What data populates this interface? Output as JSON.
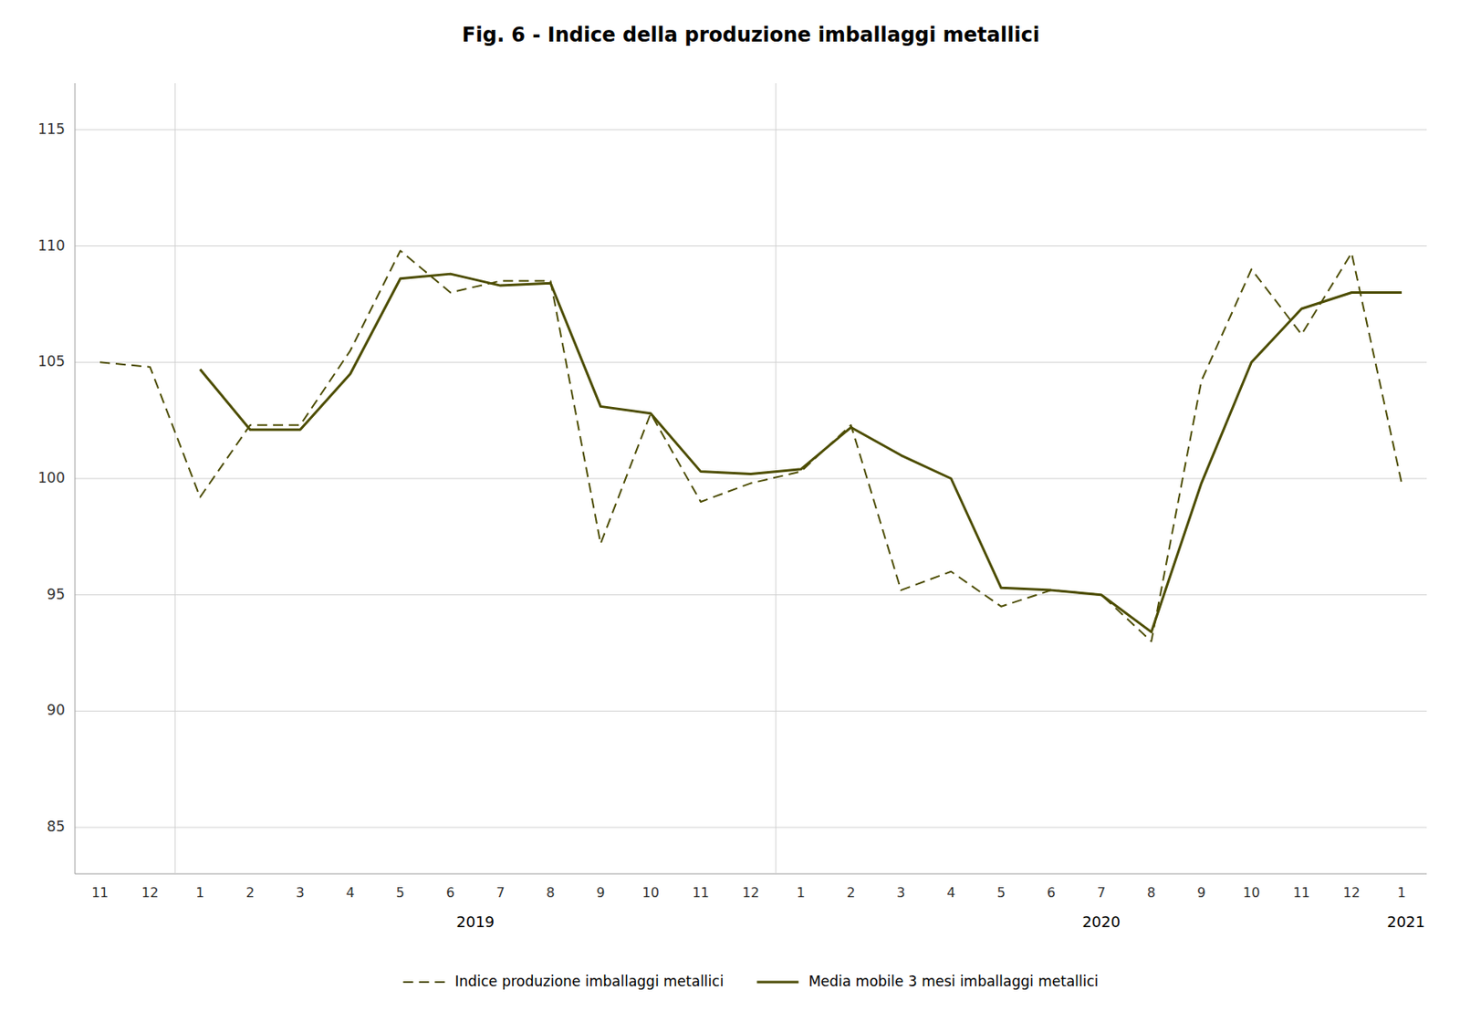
{
  "chart_data": {
    "type": "line",
    "title": "Fig. 6 - Indice della produzione imballaggi metallici",
    "categories": [
      "11",
      "12",
      "1",
      "2",
      "3",
      "4",
      "5",
      "6",
      "7",
      "8",
      "9",
      "10",
      "11",
      "12",
      "1",
      "2",
      "3",
      "4",
      "5",
      "6",
      "7",
      "8",
      "9",
      "10",
      "11",
      "12",
      "1"
    ],
    "series": [
      {
        "name": "Indice produzione imballaggi metallici",
        "color": "#4d4d00",
        "line_style": "dashed",
        "values": [
          105.0,
          104.8,
          99.2,
          102.3,
          102.3,
          105.5,
          109.8,
          108.0,
          108.5,
          108.5,
          97.2,
          102.8,
          99.0,
          99.8,
          100.3,
          102.3,
          95.2,
          96.0,
          94.5,
          95.2,
          95.0,
          93.0,
          104.2,
          109.0,
          106.2,
          109.7,
          99.8
        ]
      },
      {
        "name": "Media mobile 3 mesi imballaggi metallici",
        "color": "#4d4d00",
        "line_style": "solid",
        "values": [
          null,
          null,
          104.7,
          102.1,
          102.1,
          104.5,
          108.6,
          108.8,
          108.3,
          108.4,
          103.1,
          102.8,
          100.3,
          100.2,
          100.4,
          102.2,
          101.0,
          100.0,
          95.3,
          95.2,
          95.0,
          93.4,
          99.8,
          105.0,
          107.3,
          108.0,
          108.0
        ]
      }
    ],
    "ylim": [
      83,
      117
    ],
    "yticks": [
      85,
      90,
      95,
      100,
      105,
      110,
      115
    ],
    "grid": true,
    "legend": "bottom",
    "annotations": [
      "2019",
      "2020",
      "2021"
    ],
    "separators": [
      1.5,
      13.5
    ]
  }
}
